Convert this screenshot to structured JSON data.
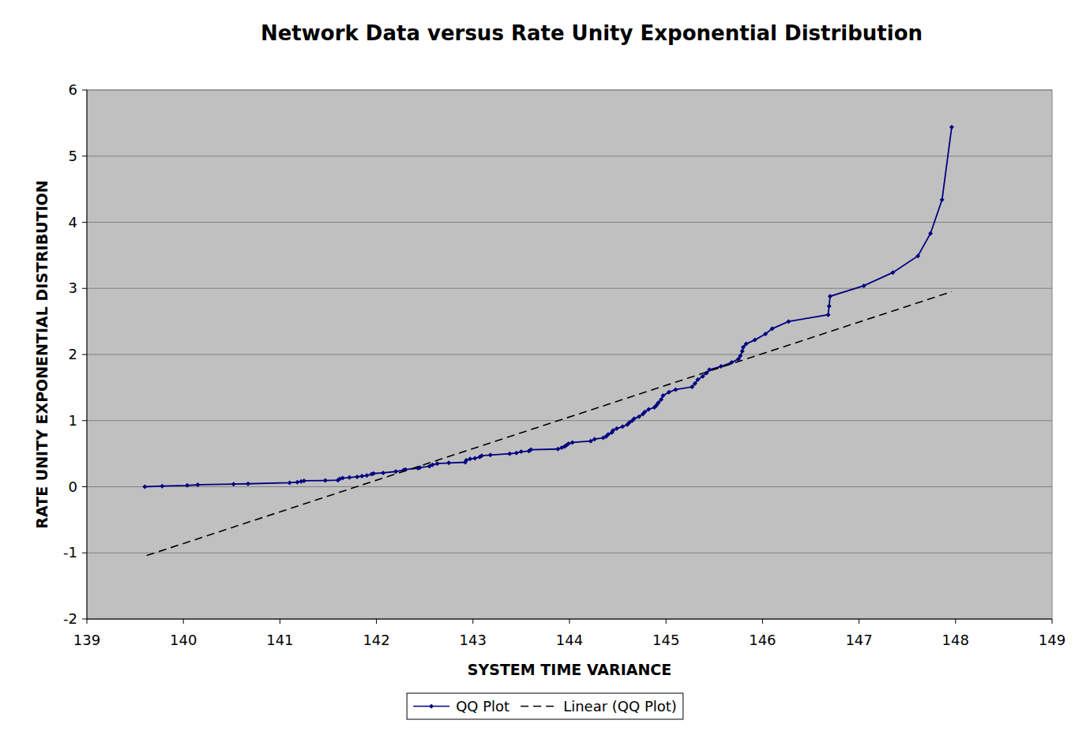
{
  "chart_data": {
    "type": "line",
    "title": "Network Data versus Rate Unity Exponential Distribution",
    "x_label": "SYSTEM TIME VARIANCE",
    "y_label": "RATE UNITY EXPONENTIAL DISTRIBUTION",
    "xlim": [
      139,
      149
    ],
    "xticks": [
      139,
      140,
      141,
      142,
      143,
      144,
      145,
      146,
      147,
      148,
      149
    ],
    "ylim": [
      -2,
      6
    ],
    "yticks": [
      -2,
      -1,
      0,
      1,
      2,
      3,
      4,
      5,
      6
    ],
    "grid": true,
    "legend": "bottom",
    "series": [
      {
        "name": "QQ Plot",
        "color": "#000080",
        "marker": "diamond",
        "line_style": "solid",
        "x": [
          139.6,
          139.78,
          140.04,
          140.15,
          140.52,
          140.67,
          141.1,
          141.18,
          141.22,
          141.25,
          141.47,
          141.6,
          141.62,
          141.65,
          141.72,
          141.8,
          141.85,
          141.9,
          141.95,
          141.97,
          142.07,
          142.2,
          142.28,
          142.3,
          142.43,
          142.45,
          142.55,
          142.58,
          142.63,
          142.75,
          142.92,
          142.93,
          142.97,
          143.02,
          143.07,
          143.09,
          143.18,
          143.38,
          143.45,
          143.5,
          143.58,
          143.6,
          143.88,
          143.92,
          143.95,
          143.97,
          143.99,
          144.03,
          144.22,
          144.26,
          144.35,
          144.38,
          144.4,
          144.44,
          144.45,
          144.49,
          144.55,
          144.6,
          144.62,
          144.65,
          144.67,
          144.72,
          144.76,
          144.78,
          144.82,
          144.88,
          144.9,
          144.92,
          144.95,
          144.97,
          145.03,
          145.1,
          145.27,
          145.3,
          145.33,
          145.38,
          145.42,
          145.45,
          145.57,
          145.68,
          145.75,
          145.77,
          145.79,
          145.8,
          145.83,
          145.92,
          146.03,
          146.1,
          146.27,
          146.68,
          146.69,
          146.7,
          147.05,
          147.35,
          147.61,
          147.74,
          147.86,
          147.96
        ],
        "values": [
          0.0,
          0.01,
          0.02,
          0.03,
          0.04,
          0.045,
          0.06,
          0.07,
          0.08,
          0.09,
          0.095,
          0.1,
          0.12,
          0.13,
          0.14,
          0.15,
          0.16,
          0.17,
          0.19,
          0.2,
          0.21,
          0.23,
          0.25,
          0.26,
          0.28,
          0.29,
          0.31,
          0.33,
          0.35,
          0.36,
          0.37,
          0.4,
          0.42,
          0.43,
          0.45,
          0.47,
          0.48,
          0.5,
          0.51,
          0.53,
          0.54,
          0.56,
          0.57,
          0.59,
          0.61,
          0.63,
          0.65,
          0.67,
          0.69,
          0.72,
          0.74,
          0.76,
          0.79,
          0.82,
          0.85,
          0.88,
          0.91,
          0.94,
          0.97,
          1.0,
          1.03,
          1.06,
          1.1,
          1.13,
          1.17,
          1.2,
          1.23,
          1.27,
          1.32,
          1.38,
          1.43,
          1.47,
          1.51,
          1.56,
          1.62,
          1.67,
          1.72,
          1.77,
          1.82,
          1.88,
          1.93,
          1.98,
          2.05,
          2.11,
          2.16,
          2.22,
          2.31,
          2.39,
          2.5,
          2.6,
          2.73,
          2.88,
          3.04,
          3.24,
          3.49,
          3.83,
          4.34,
          5.44
        ]
      },
      {
        "name": "Linear (QQ Plot)",
        "color": "#000000",
        "marker": "none",
        "line_style": "dashed",
        "x": [
          139.62,
          147.96
        ],
        "values": [
          -1.04,
          2.95
        ]
      }
    ]
  }
}
